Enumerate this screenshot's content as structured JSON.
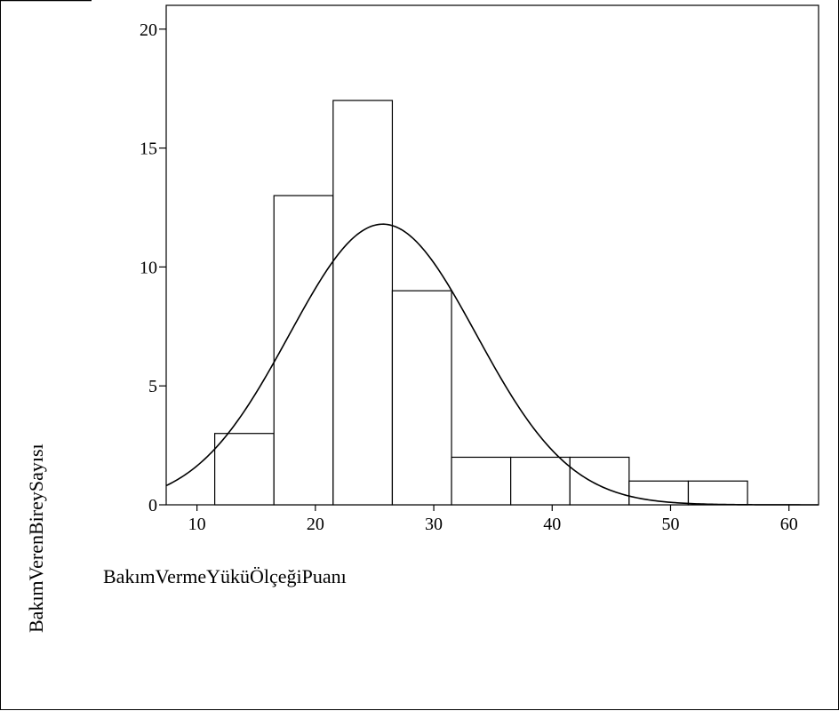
{
  "chart_data": {
    "type": "bar",
    "subtype": "histogram-with-normal-curve",
    "title": "",
    "xlabel": "BakımVermeYüküÖlçeğiPuanı",
    "ylabel": "BakımVerenBireySayısı",
    "xlim": [
      7.4,
      62.5
    ],
    "ylim": [
      0,
      21
    ],
    "x_ticks": [
      10,
      20,
      30,
      40,
      50,
      60
    ],
    "x_tick_labels": [
      "10",
      "20",
      "30",
      "40",
      "50",
      "60"
    ],
    "y_ticks": [
      0,
      5,
      10,
      15,
      20
    ],
    "y_tick_labels": [
      "0",
      "5",
      "10",
      "15",
      "20"
    ],
    "bins": [
      {
        "start": 11.5,
        "end": 16.5,
        "count": 3
      },
      {
        "start": 16.5,
        "end": 21.5,
        "count": 13
      },
      {
        "start": 21.5,
        "end": 26.5,
        "count": 17
      },
      {
        "start": 26.5,
        "end": 31.5,
        "count": 9
      },
      {
        "start": 31.5,
        "end": 36.5,
        "count": 2
      },
      {
        "start": 36.5,
        "end": 41.5,
        "count": 2
      },
      {
        "start": 41.5,
        "end": 46.5,
        "count": 2
      },
      {
        "start": 46.5,
        "end": 51.5,
        "count": 1
      },
      {
        "start": 51.5,
        "end": 56.5,
        "count": 1
      }
    ],
    "normal_curve": {
      "mean": 25.7,
      "sd": 7.9,
      "peak": 11.8
    },
    "grid": false,
    "legend": "none"
  }
}
